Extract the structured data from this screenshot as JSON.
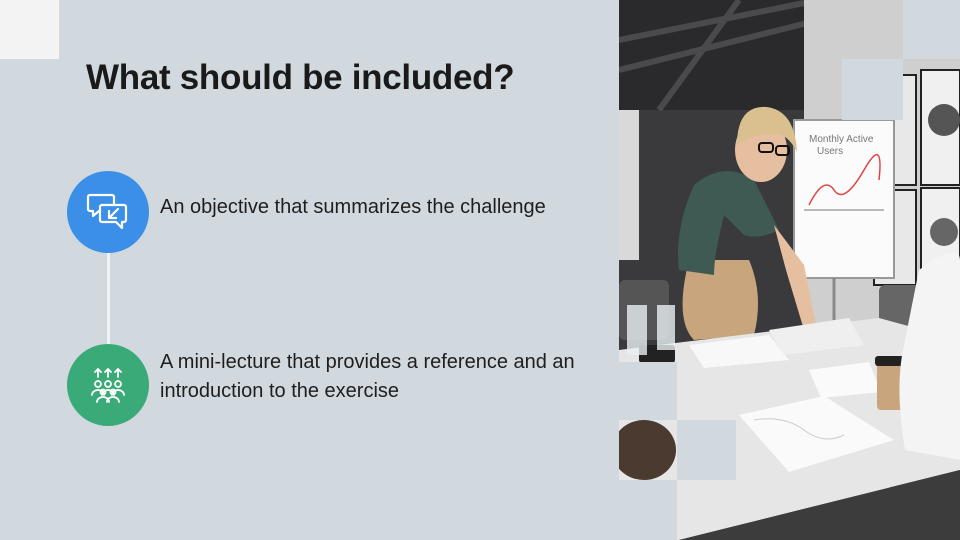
{
  "slide": {
    "title": "What should be included?",
    "items": [
      {
        "text": "An objective that summarizes the challenge",
        "icon": "chat-bubbles-icon",
        "color": "#3b8fe6"
      },
      {
        "text": "A mini-lecture that provides a reference and an introduction to the exercise",
        "icon": "group-presentation-icon",
        "color": "#3aaa78"
      }
    ],
    "photo": {
      "whiteboard_text": [
        "Monthly Active",
        "Users"
      ]
    }
  }
}
